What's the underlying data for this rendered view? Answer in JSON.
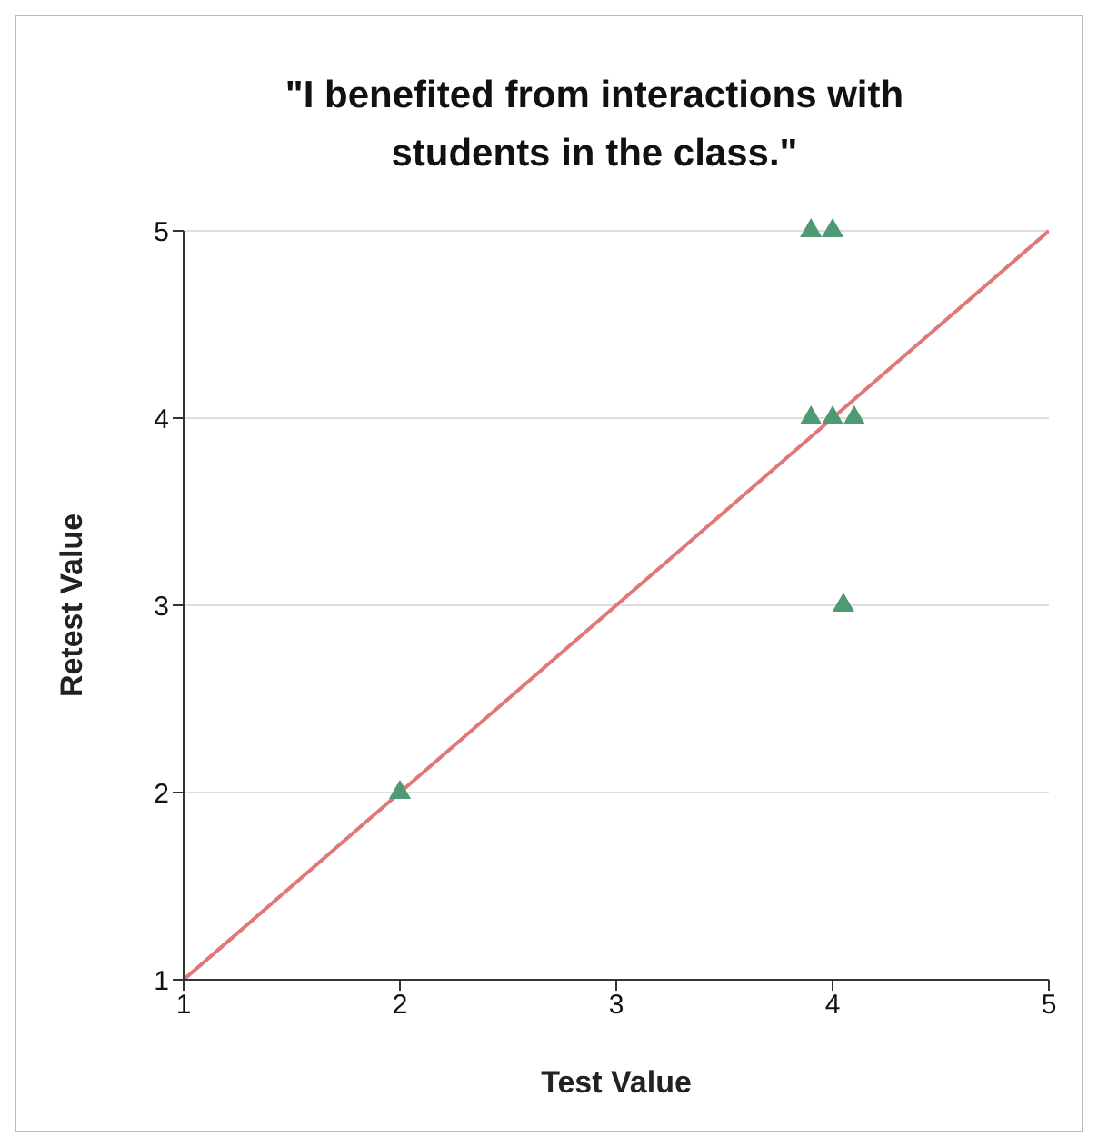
{
  "chart_data": {
    "type": "scatter",
    "title": "\"I benefited from interactions with students in the class.\"",
    "xlabel": "Test Value",
    "ylabel": "Retest Value",
    "xlim": [
      1,
      5
    ],
    "ylim": [
      1,
      5
    ],
    "xticks": [
      1,
      2,
      3,
      4,
      5
    ],
    "yticks": [
      1,
      2,
      3,
      4,
      5
    ],
    "grid": "y",
    "marker": "triangle",
    "series": [
      {
        "color": "#4e9a72",
        "x": [
          2,
          3.9,
          4.0,
          3.9,
          4.0,
          4.1,
          4.05
        ],
        "values": [
          2,
          5,
          5,
          4,
          4,
          4,
          3
        ]
      },
      {
        "type": "line",
        "color": "#e07878",
        "marker": "none",
        "line_style": "solid",
        "x": [
          1,
          5
        ],
        "values": [
          1,
          5
        ]
      }
    ]
  }
}
